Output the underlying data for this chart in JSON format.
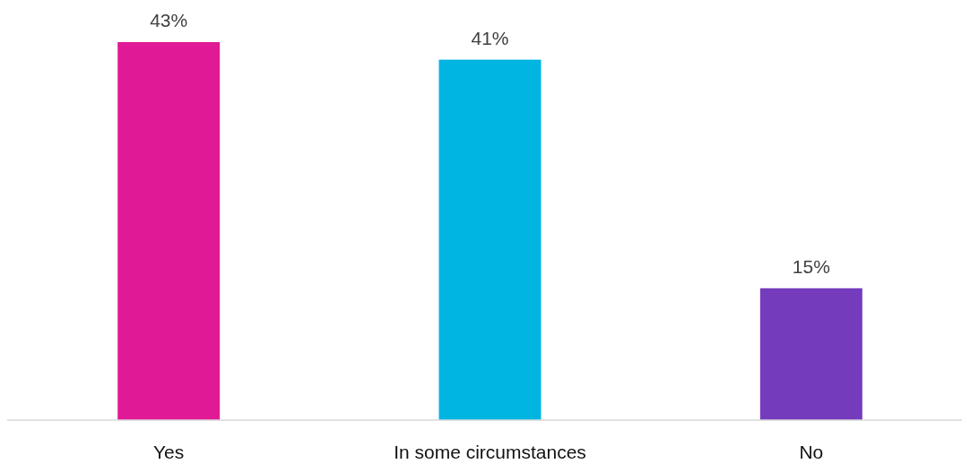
{
  "chart_data": {
    "type": "bar",
    "categories": [
      "Yes",
      "In some circumstances",
      "No"
    ],
    "values": [
      43,
      41,
      15
    ],
    "colors": [
      "#e01a96",
      "#00b5e2",
      "#753bbd"
    ],
    "value_labels": [
      "43%",
      "41%",
      "15%"
    ],
    "legend": false,
    "grid": false
  }
}
